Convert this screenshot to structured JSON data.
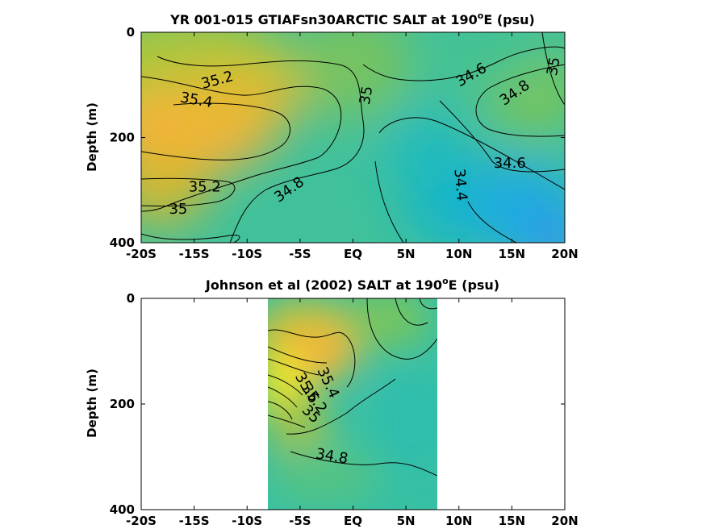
{
  "chart_data": [
    {
      "type": "heatmap",
      "title_main": "YR 001-015 GTIAFsn30ARCTIC SALT at 190",
      "title_sup": "o",
      "title_tail": "E (psu)",
      "ylabel": "Depth (m)",
      "xlim": [
        -20,
        20
      ],
      "ylim": [
        0,
        400
      ],
      "x_ticks": [
        -20,
        -15,
        -10,
        -5,
        0,
        5,
        10,
        15,
        20
      ],
      "x_tick_labels": [
        "-20S",
        "-15S",
        "-10S",
        "-5S",
        "EQ",
        "5N",
        "10N",
        "15N",
        "20N"
      ],
      "y_ticks": [
        0,
        200,
        400
      ],
      "y_tick_labels": [
        "0",
        "200",
        "400"
      ],
      "data_x_range": [
        -20,
        20
      ],
      "contour_labels": [
        {
          "text": "35.2",
          "x": -12.8,
          "y": 92
        },
        {
          "text": "35.4",
          "x": -14.8,
          "y": 130
        },
        {
          "text": "35",
          "x": 1.3,
          "y": 120
        },
        {
          "text": "34.6",
          "x": 11.2,
          "y": 82
        },
        {
          "text": "34.8",
          "x": 15.3,
          "y": 116
        },
        {
          "text": "35",
          "x": 19.0,
          "y": 65
        },
        {
          "text": "34.6",
          "x": 14.8,
          "y": 250
        },
        {
          "text": "34.4",
          "x": 10.1,
          "y": 290
        },
        {
          "text": "35.2",
          "x": -14.0,
          "y": 295
        },
        {
          "text": "35",
          "x": -16.5,
          "y": 337
        },
        {
          "text": "34.8",
          "x": -6.0,
          "y": 300
        }
      ]
    },
    {
      "type": "heatmap",
      "title_main": "Johnson et al (2002) SALT at 190",
      "title_sup": "o",
      "title_tail": "E (psu)",
      "ylabel": "Depth (m)",
      "xlim": [
        -20,
        20
      ],
      "ylim": [
        0,
        400
      ],
      "x_ticks": [
        -20,
        -15,
        -10,
        -5,
        0,
        5,
        10,
        15,
        20
      ],
      "x_tick_labels": [
        "-20S",
        "-15S",
        "-10S",
        "-5S",
        "EQ",
        "5N",
        "10N",
        "15N",
        "20N"
      ],
      "y_ticks": [
        0,
        200,
        400
      ],
      "y_tick_labels": [
        "0",
        "200",
        "400"
      ],
      "data_x_range": [
        -8,
        8
      ],
      "contour_labels": [
        {
          "text": "35.6",
          "x": -4.4,
          "y": 170
        },
        {
          "text": "35.4",
          "x": -2.4,
          "y": 160
        },
        {
          "text": "35.2",
          "x": -3.7,
          "y": 190
        },
        {
          "text": "35",
          "x": -4.0,
          "y": 220
        },
        {
          "text": "34.8",
          "x": -2.0,
          "y": 300
        }
      ]
    }
  ],
  "colors": {
    "low": "#21a1e2",
    "mid": "#31c3ad",
    "high": "#fbb23a",
    "max": "#f7ee14",
    "contour": "#000000"
  }
}
